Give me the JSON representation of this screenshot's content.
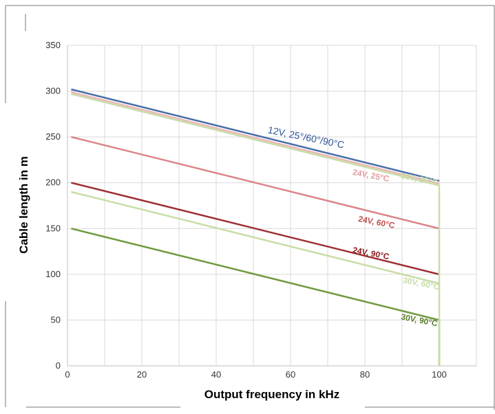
{
  "chart_data": {
    "type": "line",
    "title": "",
    "xlabel": "Output frequency in kHz",
    "ylabel": "Cable length in m",
    "xlim": [
      0,
      110
    ],
    "ylim": [
      0,
      350
    ],
    "x_ticks": [
      0,
      20,
      40,
      60,
      80,
      100
    ],
    "y_ticks": [
      0,
      50,
      100,
      150,
      200,
      250,
      300,
      350
    ],
    "x_tick_labels": [
      "0",
      "20",
      "40",
      "60",
      "80",
      "100"
    ],
    "y_tick_labels": [
      "0",
      "50",
      "100",
      "150",
      "200",
      "250",
      "300",
      "350"
    ],
    "x_grid_step": 10,
    "grid": true,
    "series": [
      {
        "name": "30V, 90°C",
        "color": "#6f9a3e",
        "x": [
          1,
          100,
          100
        ],
        "y": [
          150,
          50,
          0
        ]
      },
      {
        "name": "30V, 60°C",
        "color": "#c8dda6",
        "x": [
          1,
          100
        ],
        "y": [
          190,
          90
        ]
      },
      {
        "name": "24V, 90°C",
        "color": "#9e2f33",
        "x": [
          1,
          100
        ],
        "y": [
          200,
          100
        ]
      },
      {
        "name": "24V, 60°C",
        "color": "#d98588",
        "x": [
          1,
          100
        ],
        "y": [
          250,
          150
        ]
      },
      {
        "name": "30V, 25°C",
        "color": "#c8dda6",
        "x": [
          1,
          100,
          100
        ],
        "y": [
          297,
          197,
          0
        ]
      },
      {
        "name": "24V, 25°C",
        "color": "#e8b7b8",
        "x": [
          1,
          100
        ],
        "y": [
          299,
          199
        ]
      },
      {
        "name": "12V, 25°/60°/90°C",
        "color": "#4a6fa8",
        "x": [
          1,
          100
        ],
        "y": [
          302,
          202
        ]
      }
    ],
    "annotations": [
      {
        "text": "12V, 25°/60°/90°C",
        "x": 64,
        "y": 246,
        "angle": 11.5,
        "color": "#2f5597"
      },
      {
        "text": "24V, 25°C",
        "x": 81.5,
        "y": 205,
        "angle": 11,
        "color": "#e39ea0"
      },
      {
        "text": "30V, 25°C",
        "x": 94.5,
        "y": 201,
        "angle": 11,
        "color": "#c8dda6"
      },
      {
        "text": "24V, 60°C",
        "x": 83,
        "y": 154,
        "angle": 11,
        "color": "#c0504d"
      },
      {
        "text": "24V, 90°C",
        "x": 81.5,
        "y": 120,
        "angle": 11,
        "color": "#8b1e22"
      },
      {
        "text": "30V, 60°C",
        "x": 95,
        "y": 87,
        "angle": 11,
        "color": "#c8dda6"
      },
      {
        "text": "30V, 90°C",
        "x": 94.5,
        "y": 47,
        "angle": 11,
        "color": "#5a7d2c"
      }
    ]
  }
}
